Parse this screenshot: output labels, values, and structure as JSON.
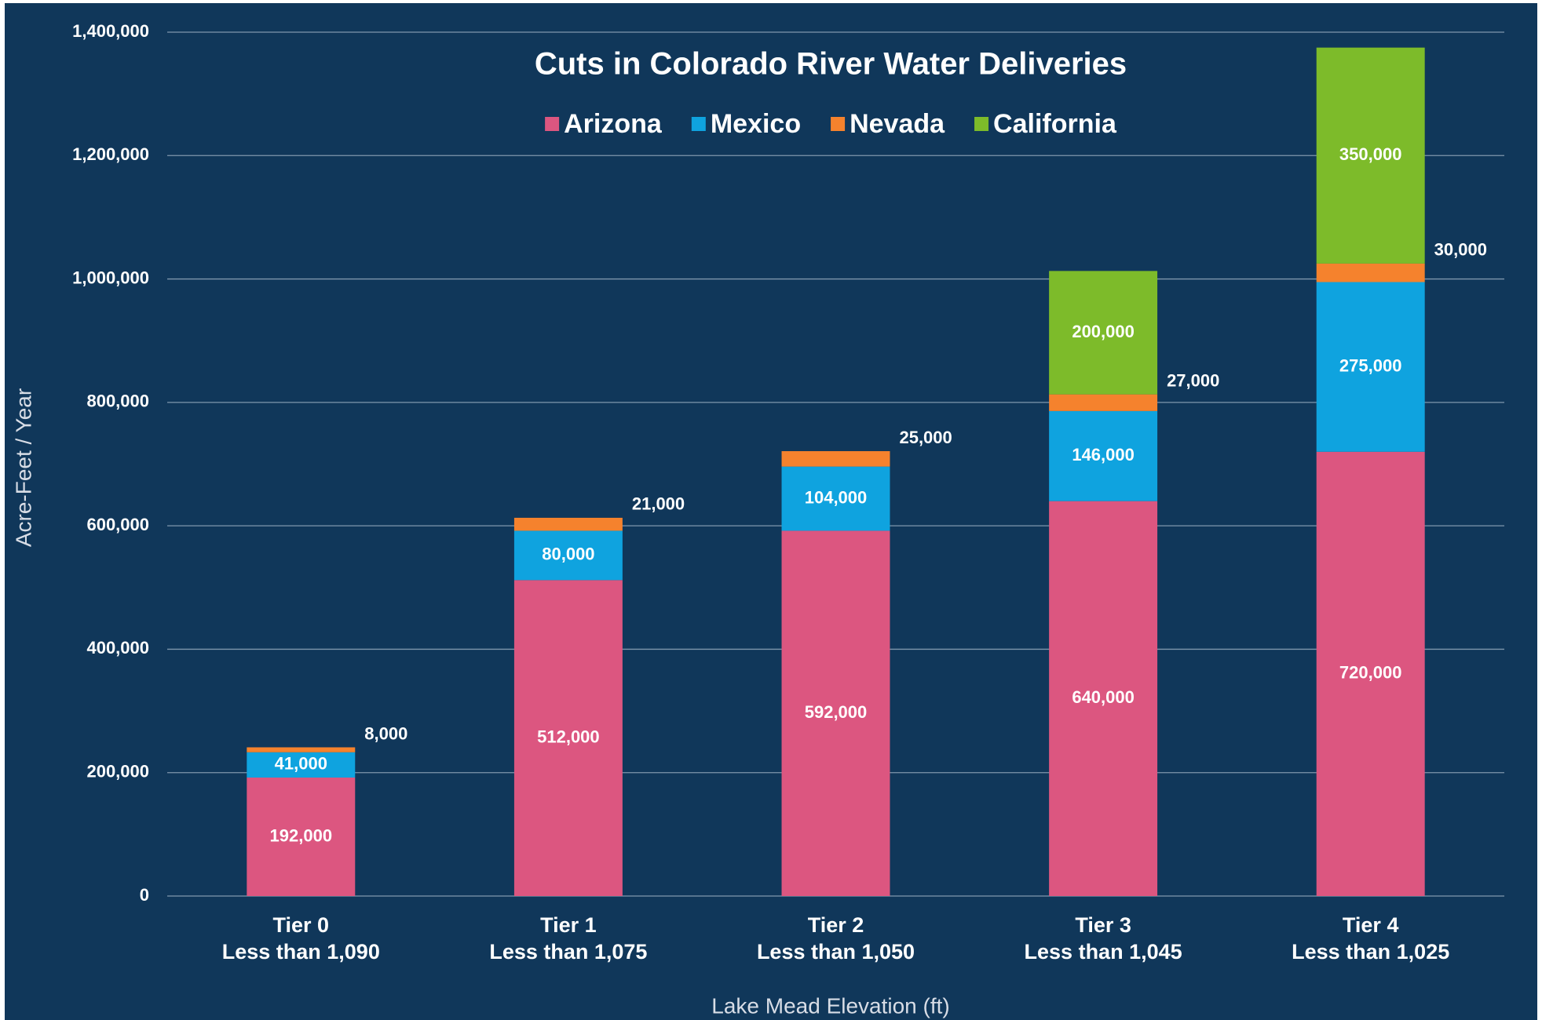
{
  "chart_data": {
    "type": "stacked_bar",
    "title": "Cuts in Colorado River Water Deliveries",
    "xlabel": "Lake Mead Elevation (ft)",
    "ylabel": "Acre-Feet / Year",
    "legend": "top",
    "grid": true,
    "categories": [
      "Tier 0\nLess than 1,090",
      "Tier 1\nLess than 1,075",
      "Tier 2\nLess than 1,050",
      "Tier 3\nLess than 1,045",
      "Tier 4\nLess than 1,025"
    ],
    "series": [
      {
        "name": "Arizona",
        "color": "#dc5680",
        "values": [
          192000,
          512000,
          592000,
          640000,
          720000
        ],
        "value_labels": [
          "192,000",
          "512,000",
          "592,000",
          "640,000",
          "720,000"
        ]
      },
      {
        "name": "Mexico",
        "color": "#0fa3df",
        "values": [
          41000,
          80000,
          104000,
          146000,
          275000
        ],
        "value_labels": [
          "41,000",
          "80,000",
          "104,000",
          "146,000",
          "275,000"
        ]
      },
      {
        "name": "Nevada",
        "color": "#f5822d",
        "values": [
          8000,
          21000,
          25000,
          27000,
          30000
        ],
        "value_labels": [
          "8,000",
          "21,000",
          "25,000",
          "27,000",
          "30,000"
        ],
        "label_position": "outside"
      },
      {
        "name": "California",
        "color": "#7dbb2a",
        "values": [
          null,
          null,
          null,
          200000,
          350000
        ],
        "value_labels": [
          null,
          null,
          null,
          "200,000",
          "350,000"
        ]
      }
    ],
    "ylim": [
      0,
      1400000
    ],
    "yticks": [
      0,
      {
        "value": 200000,
        "label": "200,000"
      },
      {
        "value": 400000,
        "label": "400,000"
      },
      {
        "value": 600000,
        "label": "600,000"
      },
      {
        "value": 800000,
        "label": "800,000"
      },
      {
        "value": 1000000,
        "label": "1,000,000"
      },
      {
        "value": 1200000,
        "label": "1,200,000"
      },
      {
        "value": 1400000,
        "label": "1,400,000"
      }
    ]
  }
}
